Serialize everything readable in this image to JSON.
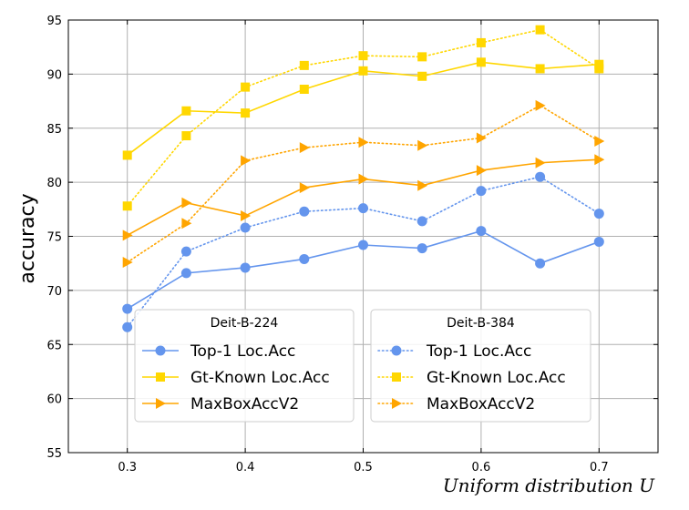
{
  "chart_data": {
    "type": "line",
    "title": "",
    "xlabel": "Uniform distribution U",
    "ylabel": "accuracy",
    "x": [
      0.3,
      0.35,
      0.4,
      0.45,
      0.5,
      0.55,
      0.6,
      0.65,
      0.7
    ],
    "xlim": [
      0.25,
      0.75
    ],
    "ylim": [
      55,
      95
    ],
    "xticks": [
      "0.3",
      "0.4",
      "0.5",
      "0.6",
      "0.7"
    ],
    "xtick_values": [
      0.3,
      0.4,
      0.5,
      0.6,
      0.7
    ],
    "yticks": [
      "55",
      "60",
      "65",
      "70",
      "75",
      "80",
      "85",
      "90",
      "95"
    ],
    "ytick_values": [
      55,
      60,
      65,
      70,
      75,
      80,
      85,
      90,
      95
    ],
    "grid": true,
    "legends": [
      {
        "title": "Deit-B-224",
        "placement": "lower-left"
      },
      {
        "title": "Deit-B-384",
        "placement": "lower-right"
      }
    ],
    "series": [
      {
        "name": "Top-1 Loc.Acc",
        "group": "Deit-B-224",
        "color": "#6495ED",
        "marker": "circle",
        "style": "solid",
        "values": [
          68.3,
          71.6,
          72.1,
          72.9,
          74.2,
          73.9,
          75.5,
          72.5,
          74.5
        ]
      },
      {
        "name": "Gt-Known Loc.Acc",
        "group": "Deit-B-224",
        "color": "#FFD700",
        "marker": "square",
        "style": "solid",
        "values": [
          82.5,
          86.6,
          86.4,
          88.6,
          90.3,
          89.8,
          91.1,
          90.5,
          90.9
        ]
      },
      {
        "name": "MaxBoxAccV2",
        "group": "Deit-B-224",
        "color": "#FFA500",
        "marker": "triangle-right",
        "style": "solid",
        "values": [
          75.1,
          78.1,
          76.9,
          79.5,
          80.3,
          79.7,
          81.1,
          81.8,
          82.1
        ]
      },
      {
        "name": "Top-1 Loc.Acc",
        "group": "Deit-B-384",
        "color": "#6495ED",
        "marker": "circle",
        "style": "dotted",
        "values": [
          66.6,
          73.6,
          75.8,
          77.3,
          77.6,
          76.4,
          79.2,
          80.5,
          77.1
        ]
      },
      {
        "name": "Gt-Known Loc.Acc",
        "group": "Deit-B-384",
        "color": "#FFD700",
        "marker": "square",
        "style": "dotted",
        "values": [
          77.8,
          84.3,
          88.8,
          90.8,
          91.7,
          91.6,
          92.9,
          94.1,
          90.5
        ]
      },
      {
        "name": "MaxBoxAccV2",
        "group": "Deit-B-384",
        "color": "#FFA500",
        "marker": "triangle-right",
        "style": "dotted",
        "values": [
          72.6,
          76.2,
          82.0,
          83.2,
          83.7,
          83.4,
          84.1,
          87.1,
          83.8
        ]
      }
    ]
  }
}
